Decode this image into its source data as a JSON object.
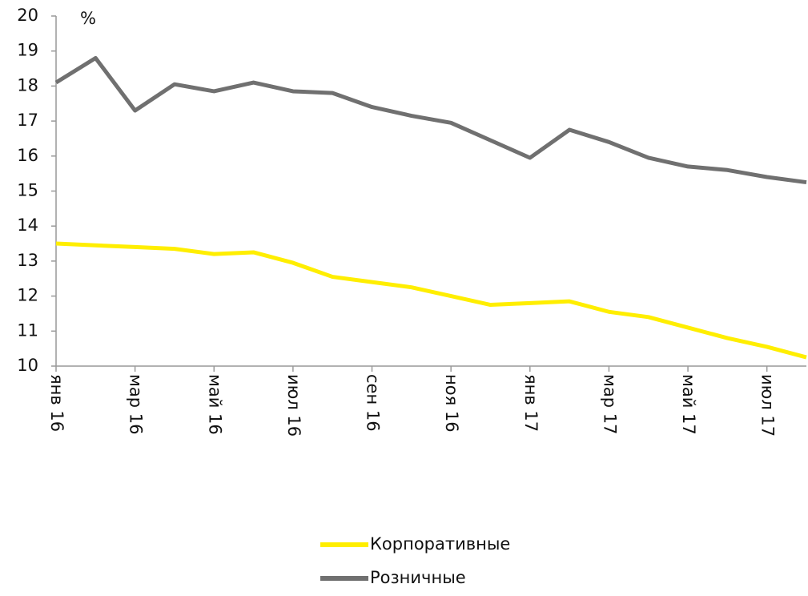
{
  "chart_data": {
    "type": "line",
    "y_label": "%",
    "categories": [
      "янв 16",
      null,
      "мар 16",
      null,
      "май 16",
      null,
      "июл 16",
      null,
      "сен 16",
      null,
      "ноя 16",
      null,
      "янв 17",
      null,
      "мар 17",
      null,
      "май 17",
      null,
      "июл 17",
      null
    ],
    "series": [
      {
        "name": "Корпоративные",
        "color": "#ffee00",
        "values": [
          13.5,
          13.45,
          13.4,
          13.35,
          13.2,
          13.25,
          12.95,
          12.55,
          12.4,
          12.25,
          12.0,
          11.75,
          11.8,
          11.85,
          11.55,
          11.4,
          11.1,
          10.8,
          10.55,
          10.25
        ]
      },
      {
        "name": "Розничные",
        "color": "#707070",
        "values": [
          18.1,
          18.8,
          17.3,
          18.05,
          17.85,
          18.1,
          17.85,
          17.8,
          17.4,
          17.15,
          16.95,
          16.45,
          15.95,
          16.75,
          16.4,
          15.95,
          15.7,
          15.6,
          15.4,
          15.25
        ]
      }
    ],
    "ylim": [
      10,
      20
    ],
    "yticks": [
      10,
      11,
      12,
      13,
      14,
      15,
      16,
      17,
      18,
      19,
      20
    ],
    "legend": "bottom"
  }
}
